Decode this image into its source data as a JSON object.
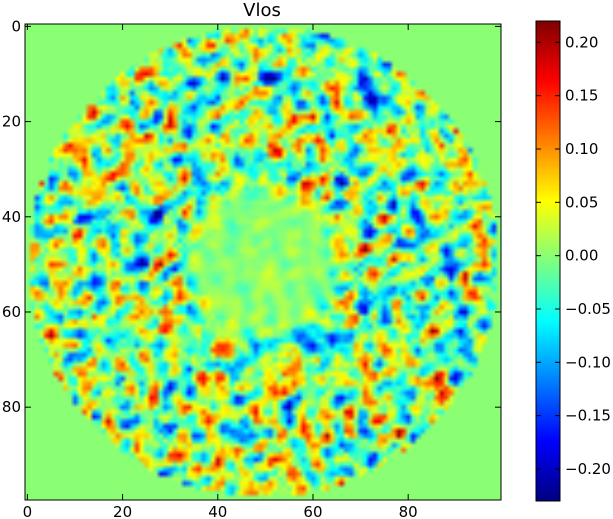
{
  "chart_data": {
    "type": "heatmap",
    "title": "Vlos",
    "xlabel": "",
    "ylabel": "",
    "grid_size": 100,
    "x_range": [
      0,
      99
    ],
    "y_range": [
      0,
      99
    ],
    "y_inverted": true,
    "x_ticks": [
      0,
      20,
      40,
      60,
      80
    ],
    "x_tick_labels": [
      "0",
      "20",
      "40",
      "60",
      "80"
    ],
    "y_ticks": [
      0,
      20,
      40,
      60,
      80
    ],
    "y_tick_labels": [
      "0",
      "20",
      "40",
      "60",
      "80"
    ],
    "colormap": "jet",
    "value_range": [
      -0.23,
      0.22
    ],
    "background_value": 0.0,
    "disk": {
      "center": [
        49.5,
        49.5
      ],
      "radius": 49.5,
      "inner_smooth_radius": 13
    },
    "colorbar": {
      "ticks": [
        0.2,
        0.15,
        0.1,
        0.05,
        0.0,
        -0.05,
        -0.1,
        -0.15,
        -0.2
      ],
      "tick_labels": [
        "0.20",
        "0.15",
        "0.10",
        "0.05",
        "0.00",
        "−0.05",
        "−0.10",
        "−0.15",
        "−0.20"
      ]
    },
    "jet_stops": [
      "#00007f",
      "#0000ff",
      "#007fff",
      "#00ffff",
      "#7fff7f",
      "#ffff00",
      "#ff7f00",
      "#ff0000",
      "#7f0000"
    ]
  }
}
